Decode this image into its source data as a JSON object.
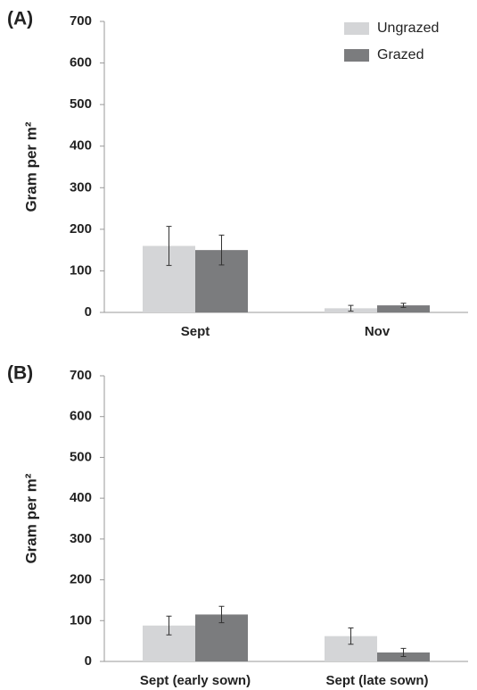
{
  "chart_data": [
    {
      "type": "bar",
      "panel_label": "(A)",
      "ylabel": "Gram per m²",
      "categories": [
        "Sept",
        "Nov"
      ],
      "series": [
        {
          "name": "Ungrazed",
          "color": "#d4d5d7",
          "values": [
            160,
            10
          ],
          "errors": [
            47,
            7
          ]
        },
        {
          "name": "Grazed",
          "color": "#7b7c7e",
          "values": [
            150,
            17
          ],
          "errors": [
            36,
            5
          ]
        }
      ],
      "ylim": [
        0,
        700
      ],
      "yticks": [
        0,
        100,
        200,
        300,
        400,
        500,
        600,
        700
      ],
      "grid": false,
      "legend": "top-right"
    },
    {
      "type": "bar",
      "panel_label": "(B)",
      "ylabel": "Gram per m²",
      "categories": [
        "Sept (early sown)",
        "Sept (late sown)"
      ],
      "series": [
        {
          "color": "#d4d5d7",
          "values": [
            88,
            62
          ],
          "errors": [
            23,
            20
          ]
        },
        {
          "color": "#7b7c7e",
          "values": [
            115,
            22
          ],
          "errors": [
            20,
            10
          ]
        }
      ],
      "ylim": [
        0,
        700
      ],
      "yticks": [
        0,
        100,
        200,
        300,
        400,
        500,
        600,
        700
      ],
      "grid": false
    }
  ]
}
